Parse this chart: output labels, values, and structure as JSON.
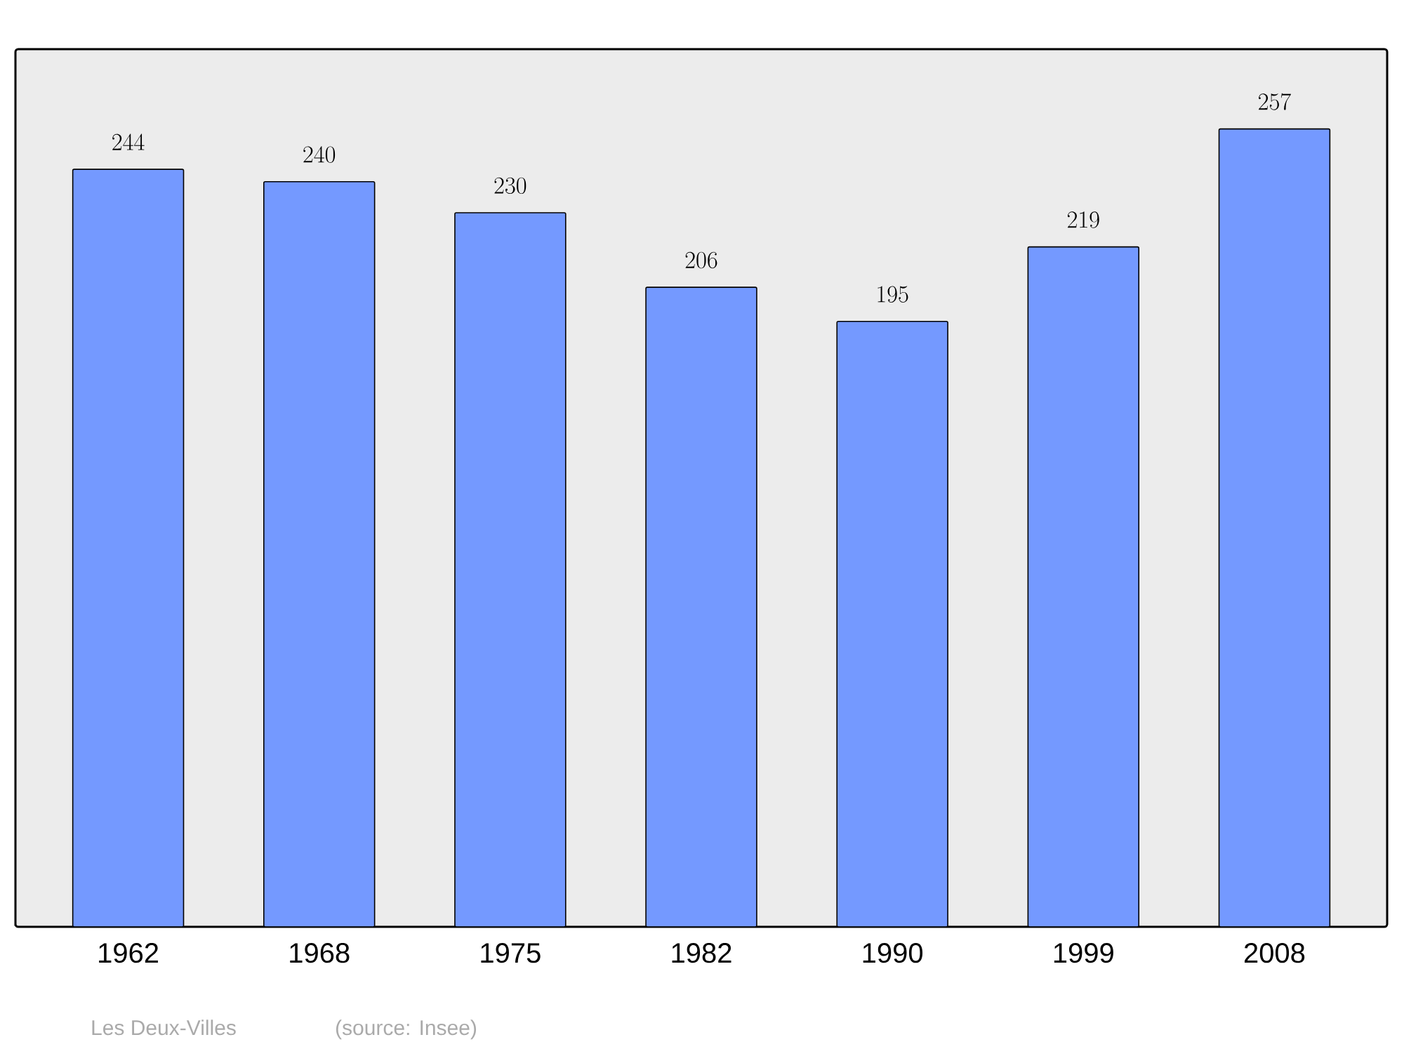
{
  "chart_data": {
    "type": "bar",
    "categories": [
      "1962",
      "1968",
      "1975",
      "1982",
      "1990",
      "1999",
      "2008"
    ],
    "values": [
      244,
      240,
      230,
      206,
      195,
      219,
      257
    ],
    "color": "#7499ff",
    "data_labels": true,
    "annotations": [
      "Les Deux-Villes",
      "(source: Insee)"
    ]
  }
}
